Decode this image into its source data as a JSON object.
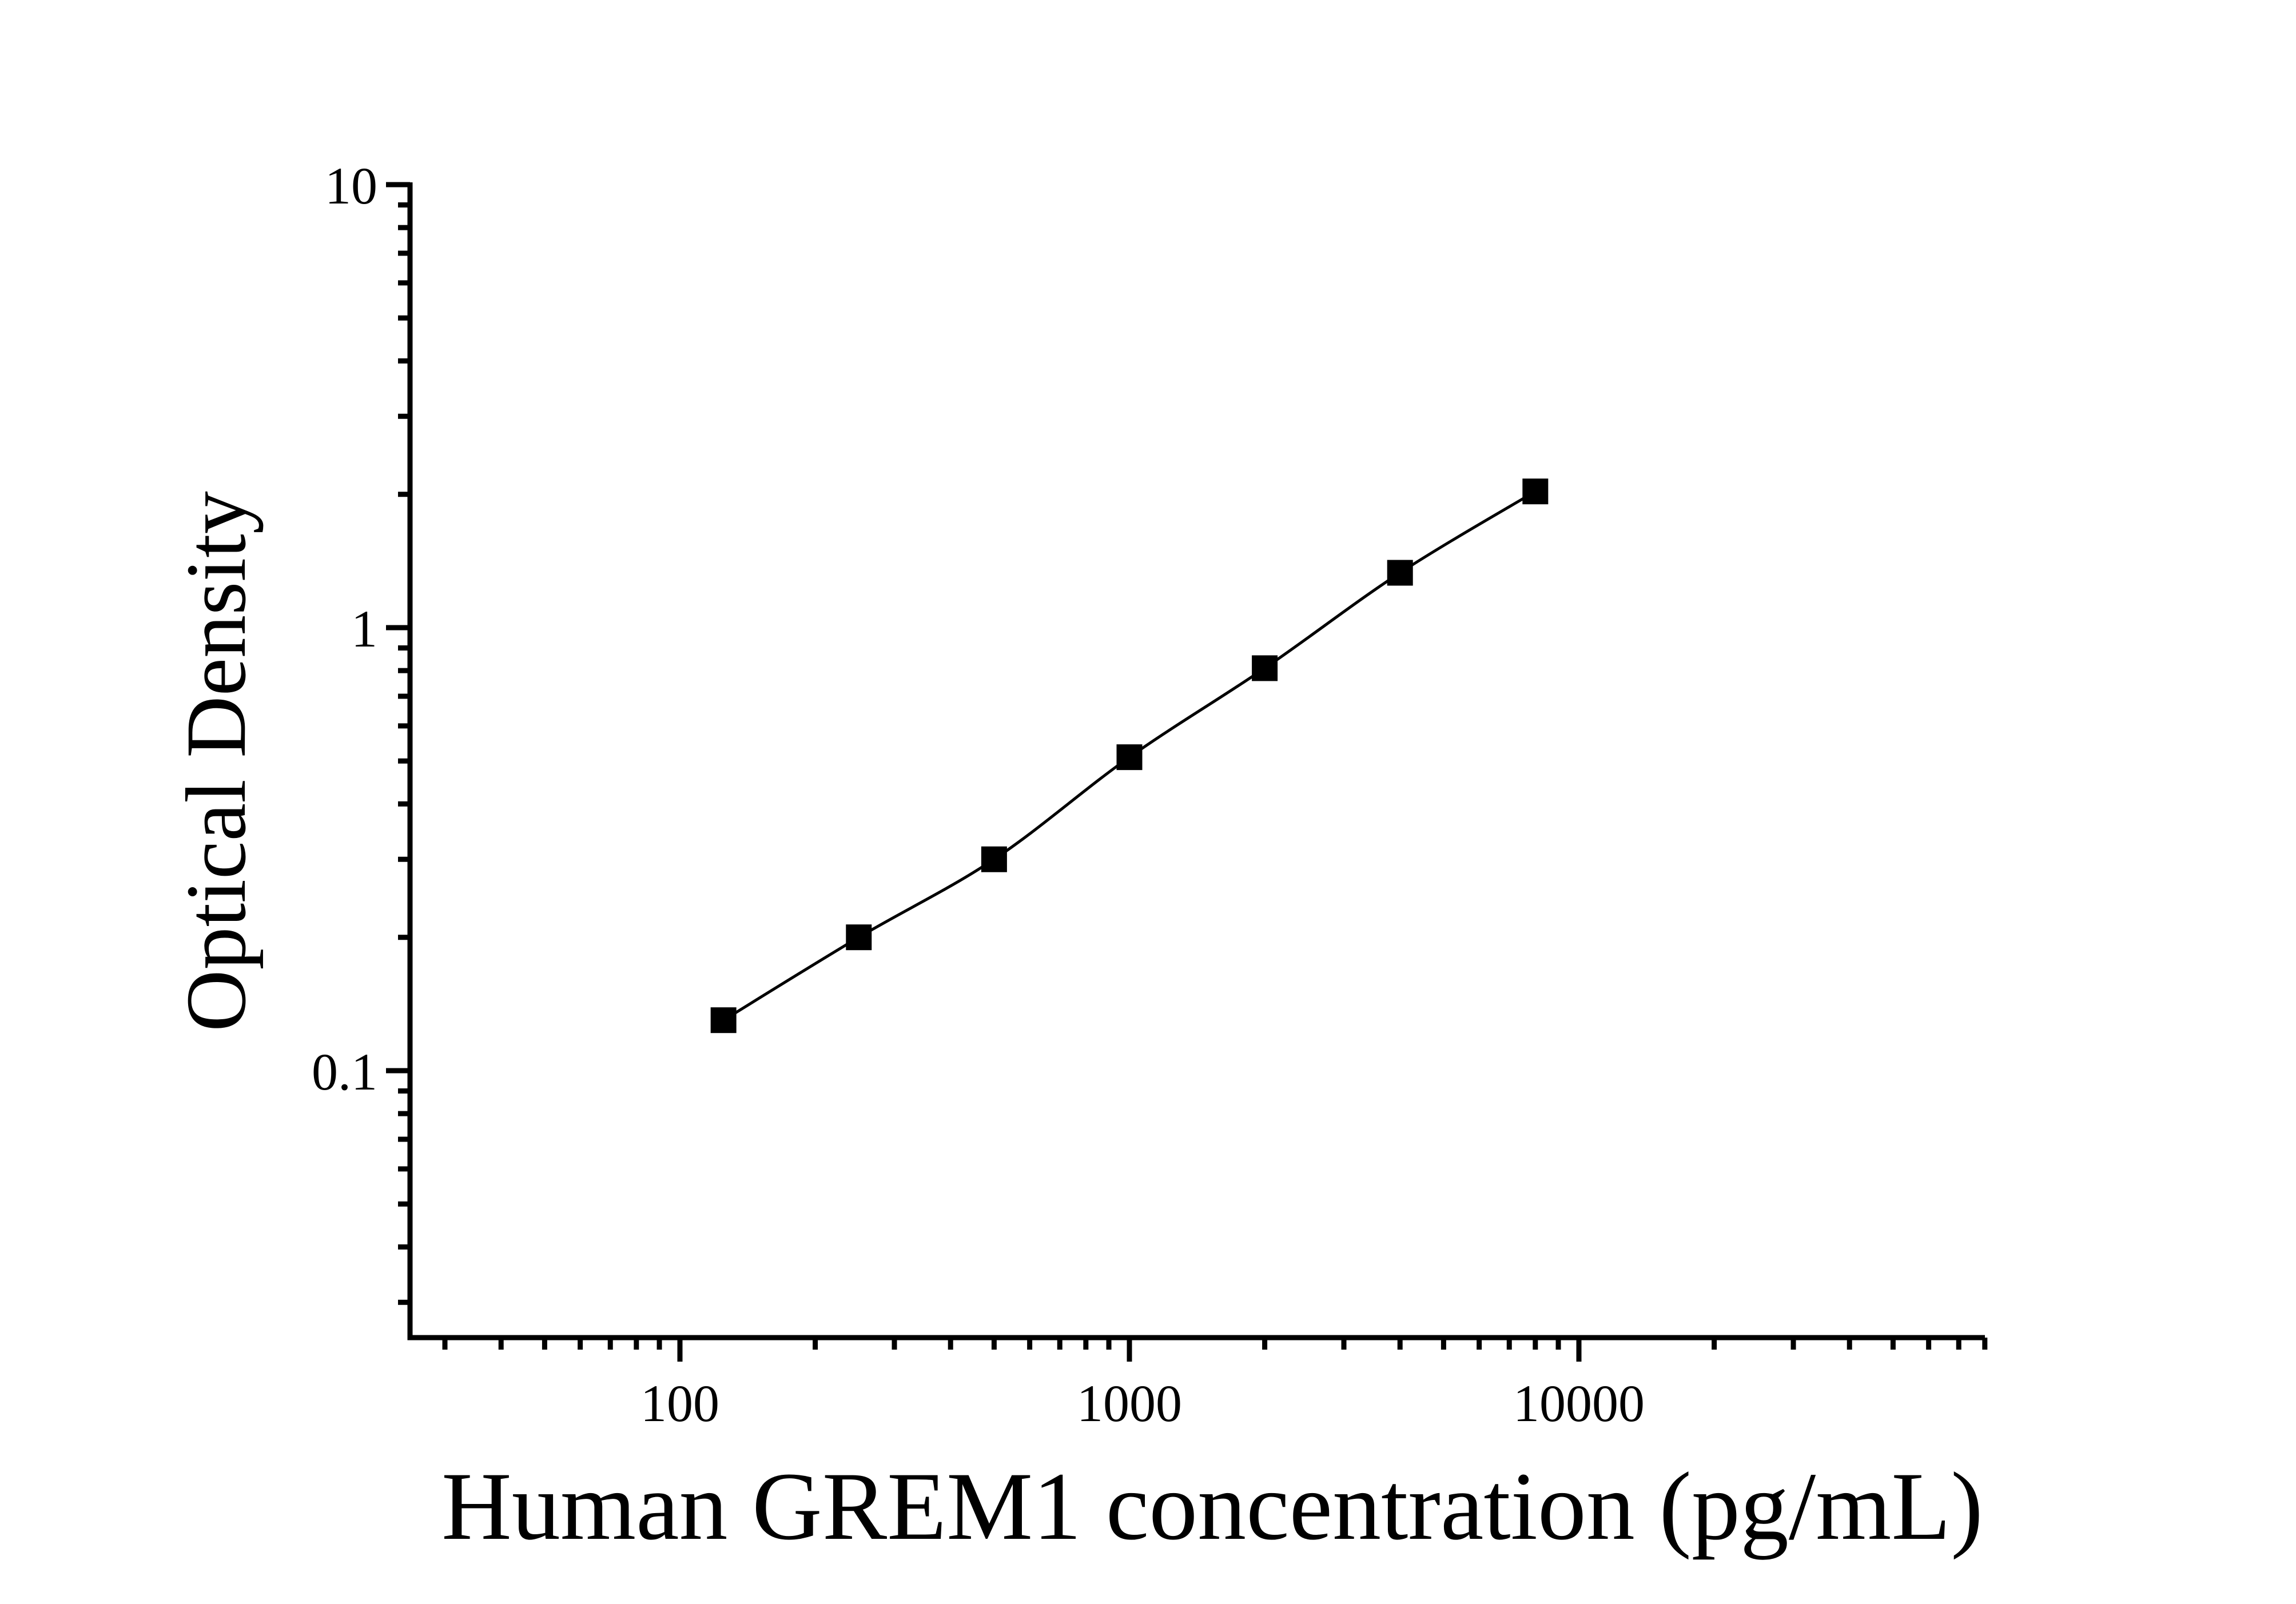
{
  "figure": {
    "background_color": "#ffffff",
    "foreground_color": "#000000"
  },
  "chart_data": {
    "type": "line",
    "subtype": "scatter-with-smooth-line",
    "scale": "log-log",
    "title": "",
    "xlabel": "Human GREM1 concentration (pg/mL)",
    "ylabel": "Optical Density",
    "x": [
      125,
      250,
      500,
      1000,
      2000,
      4000,
      8000
    ],
    "y": [
      0.13,
      0.2,
      0.3,
      0.51,
      0.81,
      1.33,
      2.03
    ],
    "series": [
      {
        "name": "standard-curve",
        "marker": "filled-square",
        "marker_color": "#000000",
        "line_color": "#000000"
      }
    ],
    "x_ticks": {
      "major_values": [
        100,
        1000,
        10000
      ],
      "major_labels": [
        "100",
        "1000",
        "10000"
      ],
      "minor_multiples": [
        2,
        3,
        4,
        5,
        6,
        7,
        8,
        9
      ]
    },
    "y_ticks": {
      "major_values": [
        10,
        1,
        0.1
      ],
      "major_labels": [
        "10",
        "1",
        "0.1"
      ],
      "minor_multiples": [
        2,
        3,
        4,
        5,
        6,
        7,
        8,
        9
      ]
    },
    "xlim": [
      25.1,
      80000
    ],
    "ylim": [
      0.025,
      10
    ],
    "grid": false,
    "legend": "none"
  }
}
